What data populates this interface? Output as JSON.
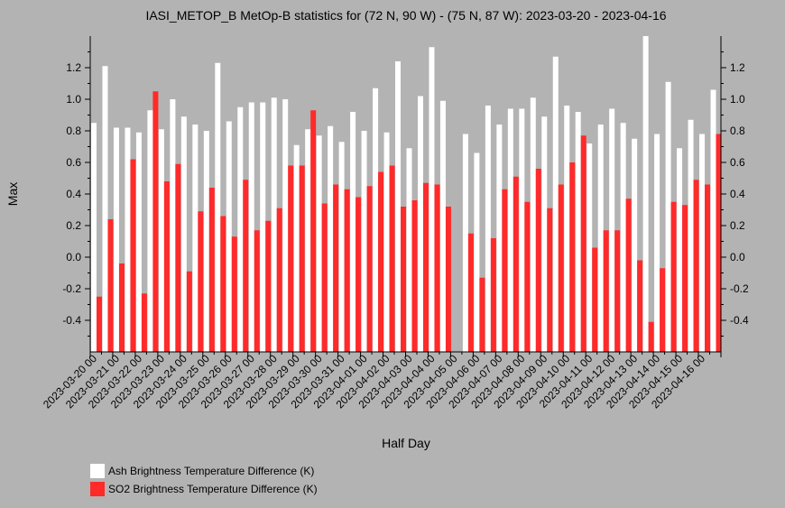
{
  "chart_data": {
    "type": "bar",
    "title": "IASI_METOP_B MetOp-B statistics for (72 N, 90 W) - (75 N, 87 W): 2023-03-20 - 2023-04-16",
    "xlabel": "Half Day",
    "ylabel": "Max",
    "ylim": [
      -0.6,
      1.4
    ],
    "yticks": [
      -0.4,
      -0.2,
      0.0,
      0.2,
      0.4,
      0.6,
      0.8,
      1.0,
      1.2
    ],
    "ytick_labels": [
      "-0.4",
      "-0.2",
      "0.0",
      "0.2",
      "0.4",
      "0.6",
      "0.8",
      "1.0",
      "1.2"
    ],
    "tick_labels": [
      "2023-03-20 00",
      "2023-03-21 00",
      "2023-03-22 00",
      "2023-03-23 00",
      "2023-03-24 00",
      "2023-03-25 00",
      "2023-03-26 00",
      "2023-03-27 00",
      "2023-03-28 00",
      "2023-03-29 00",
      "2023-03-30 00",
      "2023-03-31 00",
      "2023-04-01 00",
      "2023-04-02 00",
      "2023-04-03 00",
      "2023-04-04 00",
      "2023-04-05 00",
      "2023-04-06 00",
      "2023-04-07 00",
      "2023-04-08 00",
      "2023-04-09 00",
      "2023-04-10 00",
      "2023-04-11 00",
      "2023-04-12 00",
      "2023-04-13 00",
      "2023-04-14 00",
      "2023-04-15 00",
      "2023-04-16 00"
    ],
    "legend_position": "bottom-left",
    "grid": false,
    "series": [
      {
        "name": "Ash Brightness Temperature Difference (K)",
        "color": "#ffffff",
        "values": [
          0.85,
          1.21,
          0.82,
          0.82,
          0.79,
          0.93,
          0.81,
          1.0,
          0.89,
          0.84,
          0.8,
          1.23,
          0.86,
          0.95,
          0.98,
          0.98,
          1.01,
          1.0,
          0.71,
          0.81,
          0.77,
          0.83,
          0.73,
          0.92,
          0.8,
          1.07,
          0.79,
          1.24,
          0.69,
          1.02,
          1.33,
          0.99,
          null,
          0.78,
          0.66,
          0.96,
          0.84,
          0.94,
          0.94,
          1.01,
          0.89,
          1.27,
          0.96,
          0.92,
          0.72,
          0.84,
          0.94,
          0.85,
          0.75,
          1.4,
          0.78,
          1.11,
          0.69,
          0.87,
          0.78,
          1.06
        ]
      },
      {
        "name": "SO2 Brightness Temperature Difference (K)",
        "color": "#ff2a2a",
        "values": [
          -0.25,
          0.24,
          -0.04,
          0.62,
          -0.23,
          1.05,
          0.48,
          0.59,
          -0.09,
          0.29,
          0.44,
          0.26,
          0.13,
          0.49,
          0.17,
          0.23,
          0.31,
          0.58,
          0.58,
          0.93,
          0.34,
          0.46,
          0.43,
          0.38,
          0.45,
          0.54,
          0.58,
          0.32,
          0.36,
          0.47,
          0.46,
          0.32,
          null,
          0.15,
          -0.13,
          0.12,
          0.43,
          0.51,
          0.35,
          0.56,
          0.31,
          0.46,
          0.6,
          0.77,
          0.06,
          0.17,
          0.17,
          0.37,
          -0.02,
          -0.41,
          -0.07,
          0.35,
          0.33,
          0.49,
          0.46,
          0.78
        ]
      }
    ]
  }
}
